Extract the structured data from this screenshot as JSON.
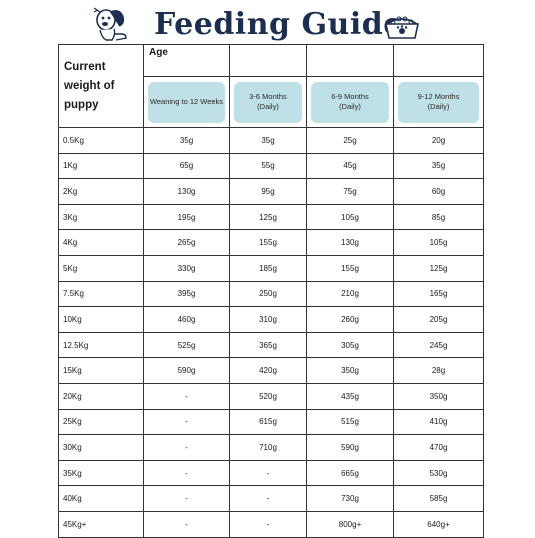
{
  "header": {
    "title": "Feeding Guide",
    "left_icon": "dog-icon",
    "right_icon": "dog-bowl-icon"
  },
  "table": {
    "weight_header": "Current weight of puppy",
    "age_header": "Age",
    "columns": [
      {
        "line1": "Weaning to 12 Weeks",
        "line2": ""
      },
      {
        "line1": "3-6 Months",
        "line2": "(Daily)"
      },
      {
        "line1": "6-9 Months",
        "line2": "(Daily)"
      },
      {
        "line1": "9-12 Months",
        "line2": "(Daily)"
      }
    ],
    "rows": [
      {
        "weight": "0.5Kg",
        "values": [
          "35g",
          "35g",
          "25g",
          "20g"
        ]
      },
      {
        "weight": "1Kg",
        "values": [
          "65g",
          "55g",
          "45g",
          "35g"
        ]
      },
      {
        "weight": "2Kg",
        "values": [
          "130g",
          "95g",
          "75g",
          "60g"
        ]
      },
      {
        "weight": "3Kg",
        "values": [
          "195g",
          "125g",
          "105g",
          "85g"
        ]
      },
      {
        "weight": "4Kg",
        "values": [
          "265g",
          "155g",
          "130g",
          "105g"
        ]
      },
      {
        "weight": "5Kg",
        "values": [
          "330g",
          "185g",
          "155g",
          "125g"
        ]
      },
      {
        "weight": "7.5Kg",
        "values": [
          "395g",
          "250g",
          "210g",
          "165g"
        ]
      },
      {
        "weight": "10Kg",
        "values": [
          "460g",
          "310g",
          "260g",
          "205g"
        ]
      },
      {
        "weight": "12.5Kg",
        "values": [
          "525g",
          "365g",
          "305g",
          "245g"
        ]
      },
      {
        "weight": "15Kg",
        "values": [
          "590g",
          "420g",
          "350g",
          "28g"
        ]
      },
      {
        "weight": "20Kg",
        "values": [
          "-",
          "520g",
          "435g",
          "350g"
        ]
      },
      {
        "weight": "25Kg",
        "values": [
          "-",
          "615g",
          "515g",
          "410g"
        ]
      },
      {
        "weight": "30Kg",
        "values": [
          "-",
          "710g",
          "590g",
          "470g"
        ]
      },
      {
        "weight": "35Kg",
        "values": [
          "-",
          "-",
          "665g",
          "530g"
        ]
      },
      {
        "weight": "40Kg",
        "values": [
          "-",
          "-",
          "730g",
          "585g"
        ]
      },
      {
        "weight": "45Kg+",
        "values": [
          "-",
          "-",
          "800g+",
          "640g+"
        ]
      }
    ]
  },
  "colors": {
    "title": "#1c2f4f",
    "pill": "#bfe0e6",
    "border": "#333333"
  }
}
